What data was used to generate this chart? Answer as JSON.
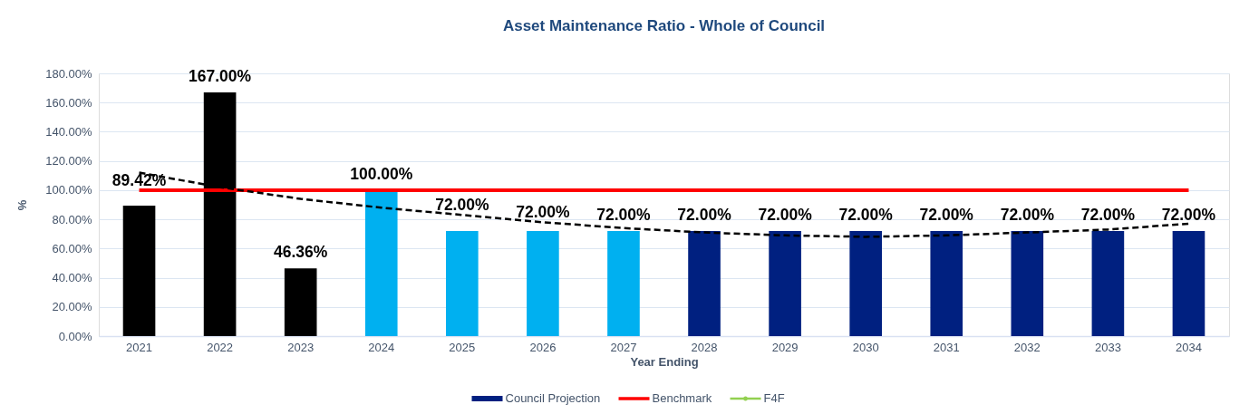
{
  "chart_data": {
    "type": "bar",
    "title": "Asset Maintenance Ratio - Whole of Council",
    "xlabel": "Year Ending",
    "ylabel": "%",
    "categories": [
      "2021",
      "2022",
      "2023",
      "2024",
      "2025",
      "2026",
      "2027",
      "2028",
      "2029",
      "2030",
      "2031",
      "2032",
      "2033",
      "2034"
    ],
    "series": [
      {
        "name": "Council Projection",
        "color": "#002080",
        "colors": [
          "#000000",
          "#000000",
          "#000000",
          "#00b0f0",
          "#00b0f0",
          "#00b0f0",
          "#00b0f0",
          "#002080",
          "#002080",
          "#002080",
          "#002080",
          "#002080",
          "#002080",
          "#002080"
        ],
        "values": [
          89.42,
          167.0,
          46.36,
          100.0,
          72.0,
          72.0,
          72.0,
          72.0,
          72.0,
          72.0,
          72.0,
          72.0,
          72.0,
          72.0
        ],
        "value_labels": [
          "89.42%",
          "167.00%",
          "46.36%",
          "100.00%",
          "72.00%",
          "72.00%",
          "72.00%",
          "72.00%",
          "72.00%",
          "72.00%",
          "72.00%",
          "72.00%",
          "72.00%",
          "72.00%"
        ]
      },
      {
        "name": "Benchmark",
        "type": "line",
        "color": "#ff0000",
        "line_style": "solid",
        "values": [
          100,
          100,
          100,
          100,
          100,
          100,
          100,
          100,
          100,
          100,
          100,
          100,
          100,
          100
        ]
      },
      {
        "name": "F4F",
        "type": "line",
        "color": "#92d050",
        "marker": "circle",
        "line_style": "solid",
        "values": [
          null,
          null,
          null,
          null,
          null,
          null,
          null,
          null,
          null,
          null,
          null,
          null,
          null,
          null
        ]
      },
      {
        "type": "line",
        "color": "#000000",
        "line_style": "dashed",
        "values": [
          112,
          102,
          94,
          88,
          83,
          78,
          74,
          71,
          69,
          68,
          69,
          71,
          73,
          77
        ]
      }
    ],
    "ylim": [
      0,
      180
    ],
    "yticks": [
      {
        "value": 0,
        "label": "0.00%"
      },
      {
        "value": 20,
        "label": "20.00%"
      },
      {
        "value": 40,
        "label": "40.00%"
      },
      {
        "value": 60,
        "label": "60.00%"
      },
      {
        "value": 80,
        "label": "80.00%"
      },
      {
        "value": 100,
        "label": "100.00%"
      },
      {
        "value": 120,
        "label": "120.00%"
      },
      {
        "value": 140,
        "label": "140.00%"
      },
      {
        "value": 160,
        "label": "160.00%"
      },
      {
        "value": 180,
        "label": "180.00%"
      }
    ],
    "grid": "y",
    "legend": "bottom"
  }
}
